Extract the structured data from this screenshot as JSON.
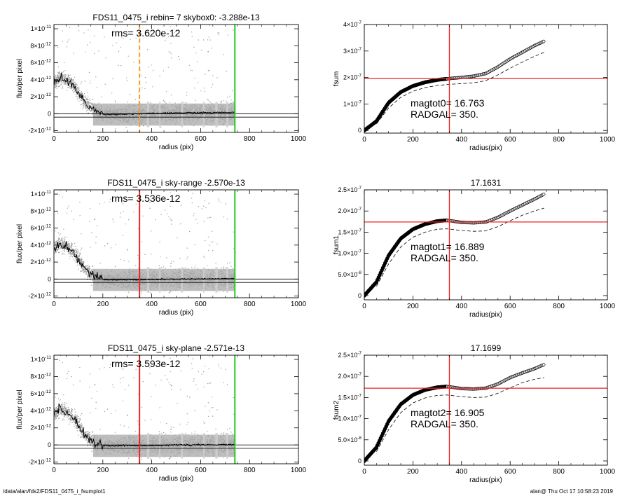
{
  "footer": {
    "path": "/data/alan/fds2/FDS11_0475_i_fsumplot1",
    "stamp": "alan@  Thu Oct 17 10:58:23 2019"
  },
  "chart_data": [
    {
      "type": "scatter",
      "title": "FDS11_0475_i rebin= 7    skybox0: -3.288e-13",
      "annotation": "rms= 3.620e-12",
      "xlabel": "radius (pix)",
      "ylabel": "flux/per pixel",
      "xlim": [
        0,
        1000
      ],
      "ylim": [
        -2.2e-12,
        1.05e-11
      ],
      "xticks": [
        0,
        200,
        400,
        600,
        800,
        1000
      ],
      "yticks": [
        {
          "v": 1e-11,
          "m": "1×10",
          "e": "-11"
        },
        {
          "v": 8e-12,
          "m": "8×10",
          "e": "-12"
        },
        {
          "v": 6e-12,
          "m": "6×10",
          "e": "-12"
        },
        {
          "v": 4e-12,
          "m": "4×10",
          "e": "-12"
        },
        {
          "v": 2e-12,
          "m": "2×10",
          "e": "-12"
        },
        {
          "v": 0,
          "m": "0",
          "e": ""
        },
        {
          "v": -2e-12,
          "m": "-2×10",
          "e": "-12"
        }
      ],
      "hlines": [
        0,
        -4e-13
      ],
      "vlines": [
        {
          "x": 350,
          "color": "#ff9a1a",
          "dash": true
        },
        {
          "x": 740,
          "color": "#22cc22",
          "dash": false
        }
      ],
      "profile": {
        "x": [
          0,
          20,
          40,
          60,
          80,
          100,
          120,
          140,
          160,
          180,
          200,
          230,
          260,
          300,
          350,
          400,
          450,
          500,
          550,
          600,
          650,
          700,
          740
        ],
        "y": [
          3.6e-12,
          4.3e-12,
          4.1e-12,
          3.7e-12,
          3.3e-12,
          2.4e-12,
          1.6e-12,
          1e-12,
          5e-13,
          1.5e-13,
          -5e-14,
          -1e-13,
          -5e-14,
          -5e-14,
          0,
          3e-14,
          5e-14,
          1e-13,
          1.1e-13,
          1.2e-13,
          1.3e-13,
          1.5e-13,
          1.6e-13
        ]
      }
    },
    {
      "type": "line",
      "title": "",
      "xlabel": "radius(pix)",
      "ylabel": "fsum",
      "xlim": [
        0,
        1000
      ],
      "ylim": [
        -1e-08,
        4e-07
      ],
      "xticks": [
        0,
        200,
        400,
        600,
        800,
        1000
      ],
      "yticks": [
        {
          "v": 4e-07,
          "m": "4×10",
          "e": "-7"
        },
        {
          "v": 3e-07,
          "m": "3×10",
          "e": "-7"
        },
        {
          "v": 2e-07,
          "m": "2×10",
          "e": "-7"
        },
        {
          "v": 1e-07,
          "m": "1×10",
          "e": "-7"
        },
        {
          "v": 0,
          "m": "0",
          "e": ""
        }
      ],
      "hline": 1.96e-07,
      "vline": 350,
      "annotation_lines": [
        "magtot0= 16.763",
        "RADGAL=    350."
      ],
      "series_circles": {
        "x": [
          0,
          50,
          100,
          150,
          200,
          250,
          300,
          350,
          400,
          450,
          500,
          550,
          600,
          650,
          700,
          740
        ],
        "y": [
          0,
          3.5e-08,
          1.05e-07,
          1.45e-07,
          1.68e-07,
          1.82e-07,
          1.91e-07,
          1.96e-07,
          2e-07,
          2.05e-07,
          2.15e-07,
          2.4e-07,
          2.7e-07,
          2.95e-07,
          3.2e-07,
          3.37e-07
        ]
      },
      "series_dashed": {
        "x": [
          50,
          100,
          150,
          200,
          250,
          300,
          350,
          400,
          450,
          500,
          550,
          600,
          650,
          700,
          740
        ],
        "y": [
          2.5e-08,
          8.5e-08,
          1.25e-07,
          1.48e-07,
          1.62e-07,
          1.7e-07,
          1.74e-07,
          1.77e-07,
          1.8e-07,
          1.88e-07,
          2.1e-07,
          2.35e-07,
          2.58e-07,
          2.8e-07,
          2.95e-07
        ]
      }
    },
    {
      "type": "scatter",
      "title": "FDS11_0475_i sky-range -2.570e-13",
      "annotation": "rms= 3.536e-12",
      "xlabel": "radius (pix)",
      "ylabel": "flux/per pixel",
      "xlim": [
        0,
        1000
      ],
      "ylim": [
        -2.2e-12,
        1.05e-11
      ],
      "xticks": [
        0,
        200,
        400,
        600,
        800,
        1000
      ],
      "yticks": [
        {
          "v": 1e-11,
          "m": "1×10",
          "e": "-11"
        },
        {
          "v": 8e-12,
          "m": "8×10",
          "e": "-12"
        },
        {
          "v": 6e-12,
          "m": "6×10",
          "e": "-12"
        },
        {
          "v": 4e-12,
          "m": "4×10",
          "e": "-12"
        },
        {
          "v": 2e-12,
          "m": "2×10",
          "e": "-12"
        },
        {
          "v": 0,
          "m": "0",
          "e": ""
        },
        {
          "v": -2e-12,
          "m": "-2×10",
          "e": "-12"
        }
      ],
      "hlines": [
        0,
        -4e-13
      ],
      "vlines": [
        {
          "x": 350,
          "color": "#ee2222",
          "dash": false
        },
        {
          "x": 740,
          "color": "#22cc22",
          "dash": false
        }
      ],
      "profile": {
        "x": [
          0,
          20,
          40,
          60,
          80,
          100,
          120,
          140,
          160,
          180,
          200,
          230,
          260,
          300,
          350,
          400,
          450,
          500,
          550,
          600,
          650,
          700,
          740
        ],
        "y": [
          3.6e-12,
          4.2e-12,
          4e-12,
          3.6e-12,
          3.2e-12,
          2.3e-12,
          1.5e-12,
          9e-13,
          4e-13,
          1e-13,
          -5e-14,
          -1e-13,
          -1e-13,
          -5e-14,
          -1e-13,
          -5e-14,
          -5e-14,
          0,
          0,
          0,
          2e-14,
          3e-14,
          5e-14
        ]
      }
    },
    {
      "type": "line",
      "title": "17.1631",
      "xlabel": "radius(pix)",
      "ylabel": "fsum1",
      "xlim": [
        0,
        1000
      ],
      "ylim": [
        -1e-08,
        2.5e-07
      ],
      "xticks": [
        0,
        200,
        400,
        600,
        800,
        1000
      ],
      "yticks": [
        {
          "v": 2.5e-07,
          "m": "2.5×10",
          "e": "-7"
        },
        {
          "v": 2e-07,
          "m": "2.0×10",
          "e": "-7"
        },
        {
          "v": 1.5e-07,
          "m": "1.5×10",
          "e": "-7"
        },
        {
          "v": 1e-07,
          "m": "1.0×10",
          "e": "-7"
        },
        {
          "v": 5e-08,
          "m": "5.0×10",
          "e": "-8"
        },
        {
          "v": 0,
          "m": "0",
          "e": ""
        }
      ],
      "hline": 1.74e-07,
      "vline": 350,
      "annotation_lines": [
        "magtot1= 16.889",
        "RADGAL=    350."
      ],
      "series_circles": {
        "x": [
          0,
          50,
          100,
          150,
          200,
          250,
          300,
          340,
          400,
          450,
          500,
          550,
          600,
          650,
          700,
          740
        ],
        "y": [
          0,
          3.2e-08,
          9.5e-08,
          1.35e-07,
          1.57e-07,
          1.69e-07,
          1.76e-07,
          1.78e-07,
          1.73e-07,
          1.72e-07,
          1.74e-07,
          1.85e-07,
          2e-07,
          2.14e-07,
          2.28e-07,
          2.4e-07
        ]
      },
      "series_dashed": {
        "x": [
          50,
          100,
          150,
          200,
          250,
          300,
          340,
          400,
          450,
          500,
          550,
          600,
          650,
          700,
          740
        ],
        "y": [
          2.2e-08,
          7.5e-08,
          1.15e-07,
          1.38e-07,
          1.5e-07,
          1.57e-07,
          1.58e-07,
          1.54e-07,
          1.52e-07,
          1.53e-07,
          1.63e-07,
          1.77e-07,
          1.9e-07,
          2e-07,
          2.07e-07
        ]
      }
    },
    {
      "type": "scatter",
      "title": "FDS11_0475_i sky-plane -2.571e-13",
      "annotation": "rms= 3.593e-12",
      "xlabel": "radius (pix)",
      "ylabel": "flux/per pixel",
      "xlim": [
        0,
        1000
      ],
      "ylim": [
        -2.2e-12,
        1.05e-11
      ],
      "xticks": [
        0,
        200,
        400,
        600,
        800,
        1000
      ],
      "yticks": [
        {
          "v": 1e-11,
          "m": "1×10",
          "e": "-11"
        },
        {
          "v": 8e-12,
          "m": "8×10",
          "e": "-12"
        },
        {
          "v": 6e-12,
          "m": "6×10",
          "e": "-12"
        },
        {
          "v": 4e-12,
          "m": "4×10",
          "e": "-12"
        },
        {
          "v": 2e-12,
          "m": "2×10",
          "e": "-12"
        },
        {
          "v": 0,
          "m": "0",
          "e": ""
        },
        {
          "v": -2e-12,
          "m": "-2×10",
          "e": "-12"
        }
      ],
      "hlines": [
        0,
        -4e-13
      ],
      "vlines": [
        {
          "x": 350,
          "color": "#ee2222",
          "dash": false
        },
        {
          "x": 740,
          "color": "#22cc22",
          "dash": false
        }
      ],
      "profile": {
        "x": [
          0,
          20,
          40,
          60,
          80,
          100,
          120,
          140,
          160,
          180,
          200,
          230,
          260,
          300,
          350,
          400,
          450,
          500,
          550,
          600,
          650,
          700,
          740
        ],
        "y": [
          3.5e-12,
          4.2e-12,
          4e-12,
          3.6e-12,
          3.2e-12,
          2.3e-12,
          1.5e-12,
          9e-13,
          4e-13,
          1e-13,
          -5e-14,
          -1e-13,
          -1e-13,
          -5e-14,
          -1e-13,
          -5e-14,
          -5e-14,
          0,
          0,
          0,
          2e-14,
          3e-14,
          5e-14
        ]
      }
    },
    {
      "type": "line",
      "title": "17.1699",
      "xlabel": "radius(pix)",
      "ylabel": "fsum2",
      "xlim": [
        0,
        1000
      ],
      "ylim": [
        -1e-08,
        2.5e-07
      ],
      "xticks": [
        0,
        200,
        400,
        600,
        800,
        1000
      ],
      "yticks": [
        {
          "v": 2.5e-07,
          "m": "2.5×10",
          "e": "-7"
        },
        {
          "v": 2e-07,
          "m": "2.0×10",
          "e": "-7"
        },
        {
          "v": 1.5e-07,
          "m": "1.5×10",
          "e": "-7"
        },
        {
          "v": 1e-07,
          "m": "1.0×10",
          "e": "-7"
        },
        {
          "v": 5e-08,
          "m": "5.0×10",
          "e": "-8"
        },
        {
          "v": 0,
          "m": "0",
          "e": ""
        }
      ],
      "hline": 1.72e-07,
      "vline": 350,
      "annotation_lines": [
        "magtot2= 16.905",
        "RADGAL=    350."
      ],
      "series_circles": {
        "x": [
          0,
          50,
          100,
          150,
          200,
          250,
          300,
          340,
          400,
          450,
          500,
          550,
          600,
          650,
          700,
          740
        ],
        "y": [
          0,
          3.2e-08,
          9.4e-08,
          1.34e-07,
          1.56e-07,
          1.68e-07,
          1.74e-07,
          1.76e-07,
          1.71e-07,
          1.7e-07,
          1.72e-07,
          1.82e-07,
          1.97e-07,
          2.08e-07,
          2.18e-07,
          2.28e-07
        ]
      },
      "series_dashed": {
        "x": [
          50,
          100,
          150,
          200,
          250,
          300,
          340,
          400,
          450,
          500,
          550,
          600,
          650,
          700,
          740
        ],
        "y": [
          2.2e-08,
          7.4e-08,
          1.14e-07,
          1.37e-07,
          1.49e-07,
          1.55e-07,
          1.56e-07,
          1.52e-07,
          1.5e-07,
          1.51e-07,
          1.6e-07,
          1.73e-07,
          1.85e-07,
          1.93e-07,
          1.97e-07
        ]
      }
    }
  ]
}
